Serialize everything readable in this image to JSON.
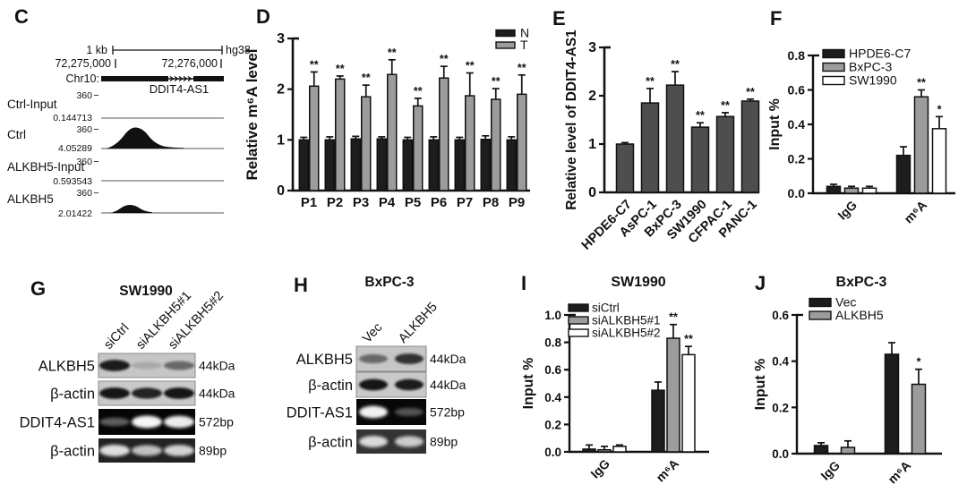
{
  "figure": {
    "background": "#ffffff",
    "panel_letters": {
      "C": "C",
      "D": "D",
      "E": "E",
      "F": "F",
      "G": "G",
      "H": "H",
      "I": "I",
      "J": "J"
    }
  },
  "colors": {
    "bar_black": "#1d1d1d",
    "bar_gray": "#9c9c9c",
    "bar_white": "#ffffff",
    "bar_darkgray": "#4e4e4e",
    "axis": "#111111"
  },
  "genome_browser": {
    "scale_label": "1 kb",
    "assembly": "hg38",
    "coord_left": "72,275,000",
    "coord_right": "72,276,000",
    "chromosome": "Chr10:",
    "gene": "DDIT4-AS1",
    "tracks": [
      {
        "name": "Ctrl-Input",
        "ymax": "360",
        "ymin": "0.144713",
        "peak": "none"
      },
      {
        "name": "Ctrl",
        "ymax": "360",
        "ymin": "4.05289",
        "peak": "large"
      },
      {
        "name": "ALKBH5-Input",
        "ymax": "360",
        "ymin": "0.593543",
        "peak": "none"
      },
      {
        "name": "ALKBH5",
        "ymax": "360",
        "ymin": "2.01422",
        "peak": "small"
      }
    ]
  },
  "blots": {
    "G": {
      "title": "SW1990",
      "lanes": [
        "siCtrl",
        "siALKBH5#1",
        "siALKBH5#2"
      ],
      "rows": [
        {
          "target": "ALKBH5",
          "size": "44kDa",
          "bg": "light",
          "box_color": "#c6c6c6",
          "bands": [
            0.92,
            0.15,
            0.5
          ]
        },
        {
          "target": "β-actin",
          "size": "44kDa",
          "bg": "light",
          "box_color": "#c9c9c9",
          "bands": [
            0.95,
            0.88,
            0.95
          ]
        },
        {
          "target": "DDIT4-AS1",
          "size": "572bp",
          "bg": "dark",
          "box_color": "#050505",
          "bands": [
            0.35,
            0.97,
            0.93
          ]
        },
        {
          "target": "β-actin",
          "size": "89bp",
          "bg": "dark",
          "box_color": "#222222",
          "bands": [
            0.85,
            0.72,
            0.8
          ]
        }
      ]
    },
    "H": {
      "title": "BxPC-3",
      "lanes": [
        "Vec",
        "ALKBH5"
      ],
      "rows": [
        {
          "target": "ALKBH5",
          "size": "44kDa",
          "bg": "light",
          "box_color": "#c6c6c6",
          "bands": [
            0.5,
            0.8
          ]
        },
        {
          "target": "β-actin",
          "size": "44kDa",
          "bg": "light",
          "box_color": "#c9c9c9",
          "bands": [
            0.95,
            0.92
          ]
        },
        {
          "target": "DDIT-AS1",
          "size": "572bp",
          "bg": "dark",
          "box_color": "#080808",
          "bands": [
            0.95,
            0.3
          ]
        },
        {
          "target": "β-actin",
          "size": "89bp",
          "bg": "dark",
          "box_color": "#333333",
          "bands": [
            0.82,
            0.75
          ]
        }
      ]
    }
  },
  "chart_data": [
    {
      "panel": "D",
      "type": "bar",
      "title": "",
      "categories": [
        "P1",
        "P2",
        "P3",
        "P4",
        "P5",
        "P6",
        "P7",
        "P8",
        "P9"
      ],
      "series": [
        {
          "name": "N",
          "color": "#1d1d1d",
          "values": [
            1.0,
            1.0,
            1.02,
            1.02,
            1.0,
            1.0,
            1.0,
            1.01,
            1.0
          ],
          "errors": [
            0.05,
            0.06,
            0.05,
            0.04,
            0.05,
            0.06,
            0.05,
            0.07,
            0.06
          ],
          "sig": [
            "",
            "",
            "",
            "",
            "",
            "",
            "",
            "",
            ""
          ]
        },
        {
          "name": "T",
          "color": "#9c9c9c",
          "values": [
            2.06,
            2.2,
            1.85,
            2.29,
            1.67,
            2.22,
            1.87,
            1.8,
            1.9
          ],
          "errors": [
            0.28,
            0.06,
            0.23,
            0.29,
            0.15,
            0.23,
            0.45,
            0.21,
            0.38
          ],
          "sig": [
            "**",
            "**",
            "**",
            "**",
            "**",
            "**",
            "**",
            "**",
            "**"
          ]
        }
      ],
      "xlabel": "",
      "ylabel": "Relative m⁶A level",
      "ylim": [
        0,
        3
      ],
      "yticks": [
        0,
        1,
        2,
        3
      ],
      "ytick_labels": [
        "0",
        "1",
        "2",
        "3"
      ],
      "legend_position": "top-right",
      "grid": false
    },
    {
      "panel": "E",
      "type": "bar",
      "title": "",
      "categories": [
        "HPDE6-C7",
        "AsPC-1",
        "BxPC-3",
        "SW1990",
        "CFPAC-1",
        "PANC-1"
      ],
      "series": [
        {
          "name": "",
          "color": "#4e4e4e",
          "values": [
            1.0,
            1.85,
            2.22,
            1.35,
            1.57,
            1.89
          ],
          "errors": [
            0.03,
            0.3,
            0.28,
            0.09,
            0.08,
            0.04
          ],
          "sig": [
            "",
            "**",
            "**",
            "**",
            "**",
            "**"
          ]
        }
      ],
      "xlabel": "",
      "ylabel": "Relative level of DDIT4-AS1",
      "ylim": [
        0,
        3
      ],
      "yticks": [
        0,
        1,
        2,
        3
      ],
      "ytick_labels": [
        "0",
        "1",
        "2",
        "3"
      ],
      "legend_position": "none",
      "grid": false
    },
    {
      "panel": "F",
      "type": "bar",
      "title": "",
      "categories": [
        "IgG",
        "m⁶A"
      ],
      "series": [
        {
          "name": "HPDE6-C7",
          "color": "#1d1d1d",
          "values": [
            0.04,
            0.22
          ],
          "errors": [
            0.012,
            0.05
          ],
          "sig": [
            "",
            ""
          ]
        },
        {
          "name": "BxPC-3",
          "color": "#9c9c9c",
          "values": [
            0.03,
            0.56
          ],
          "errors": [
            0.01,
            0.04
          ],
          "sig": [
            "",
            "**"
          ]
        },
        {
          "name": "SW1990",
          "color": "#ffffff",
          "values": [
            0.03,
            0.375
          ],
          "errors": [
            0.01,
            0.07
          ],
          "sig": [
            "",
            "*"
          ]
        }
      ],
      "xlabel": "",
      "ylabel": "Input %",
      "ylim": [
        0,
        0.8
      ],
      "yticks": [
        0,
        0.2,
        0.4,
        0.6,
        0.8
      ],
      "ytick_labels": [
        "0.0",
        "0.2",
        "0.4",
        "0.6",
        "0.8"
      ],
      "legend_position": "top-left-inside",
      "grid": false
    },
    {
      "panel": "I",
      "type": "bar",
      "title": "SW1990",
      "categories": [
        "IgG",
        "m⁶A"
      ],
      "series": [
        {
          "name": "siCtrl",
          "color": "#1d1d1d",
          "values": [
            0.02,
            0.45
          ],
          "errors": [
            0.03,
            0.06
          ],
          "sig": [
            "",
            ""
          ]
        },
        {
          "name": "siALKBH5#1",
          "color": "#9c9c9c",
          "values": [
            0.015,
            0.83
          ],
          "errors": [
            0.025,
            0.1
          ],
          "sig": [
            "",
            "**"
          ]
        },
        {
          "name": "siALKBH5#2",
          "color": "#ffffff",
          "values": [
            0.04,
            0.71
          ],
          "errors": [
            0.01,
            0.06
          ],
          "sig": [
            "",
            "**"
          ]
        }
      ],
      "xlabel": "",
      "ylabel": "Input %",
      "ylim": [
        0,
        1.0
      ],
      "yticks": [
        0,
        0.2,
        0.4,
        0.6,
        0.8,
        1.0
      ],
      "ytick_labels": [
        "0.0",
        "0.2",
        "0.4",
        "0.6",
        "0.8",
        "1.0"
      ],
      "legend_position": "top-left-inside",
      "grid": false
    },
    {
      "panel": "J",
      "type": "bar",
      "title": "BxPC-3",
      "categories": [
        "IgG",
        "m⁶A"
      ],
      "series": [
        {
          "name": "Vec",
          "color": "#1d1d1d",
          "values": [
            0.035,
            0.43
          ],
          "errors": [
            0.012,
            0.05
          ],
          "sig": [
            "",
            ""
          ]
        },
        {
          "name": "ALKBH5",
          "color": "#9c9c9c",
          "values": [
            0.027,
            0.3
          ],
          "errors": [
            0.028,
            0.065
          ],
          "sig": [
            "",
            "*"
          ]
        }
      ],
      "xlabel": "",
      "ylabel": "Input %",
      "ylim": [
        0,
        0.6
      ],
      "yticks": [
        0,
        0.2,
        0.4,
        0.6
      ],
      "ytick_labels": [
        "0.0",
        "0.2",
        "0.4",
        "0.6"
      ],
      "legend_position": "top-left-inside",
      "grid": false
    }
  ]
}
